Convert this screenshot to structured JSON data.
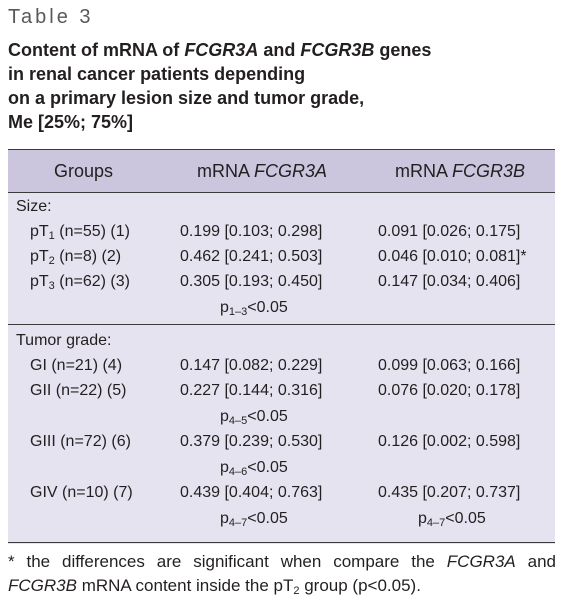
{
  "table_label": "Table 3",
  "caption": {
    "line1_a": "Content of mRNA of ",
    "line1_gene_a": "FCGR3A",
    "line1_b": " and ",
    "line1_gene_b": "FCGR3B",
    "line1_c": " genes",
    "line2": "in renal cancer patients depending",
    "line3": "on a primary lesion size and tumor grade,",
    "line4": "Me [25%; 75%]"
  },
  "headers": {
    "groups": "Groups",
    "col2_prefix": "mRNA ",
    "col2_gene": "FCGR3A",
    "col3_prefix": "mRNA ",
    "col3_gene": "FCGR3B"
  },
  "sections": {
    "size": "Size:",
    "grade": "Tumor grade:"
  },
  "rows": [
    {
      "pre": "pT",
      "sub": "1",
      "post": " (n=55) (1)",
      "a": "0.199 [0.103; 0.298]",
      "b": "0.091 [0.026; 0.175]"
    },
    {
      "pre": "pT",
      "sub": "2",
      "post": " (n=8) (2)",
      "a": "0.462 [0.241; 0.503]",
      "b": "0.046 [0.010; 0.081]*"
    },
    {
      "pre": "pT",
      "sub": "3",
      "post": " (n=62) (3)",
      "a": "0.305 [0.193; 0.450]",
      "b": "0.147 [0.034; 0.406]"
    },
    {
      "label": "GI (n=21) (4)",
      "a": "0.147 [0.082; 0.229]",
      "b": "0.099 [0.063; 0.166]"
    },
    {
      "label": "GII (n=22) (5)",
      "a": "0.227 [0.144; 0.316]",
      "b": "0.076 [0.020; 0.178]"
    },
    {
      "label": "GIII (n=72) (6)",
      "a": "0.379 [0.239; 0.530]",
      "b": "0.126 [0.002; 0.598]"
    },
    {
      "label": "GIV (n=10) (7)",
      "a": "0.439 [0.404; 0.763]",
      "b": "0.435 [0.207; 0.737]"
    }
  ],
  "pvalues": {
    "p13": {
      "pre": "p",
      "sub": "1–3",
      "post": "<0.05"
    },
    "p45": {
      "pre": "p",
      "sub": "4–5",
      "post": "<0.05"
    },
    "p46": {
      "pre": "p",
      "sub": "4–6",
      "post": "<0.05"
    },
    "p47a": {
      "pre": "p",
      "sub": "4–7",
      "post": "<0.05"
    },
    "p47b": {
      "pre": "p",
      "sub": "4–7",
      "post": "<0.05"
    }
  },
  "footnote": {
    "part1": "* the differences are significant when compare the ",
    "gene_a": "FCGR3A",
    "part2": " and ",
    "gene_b": "FCGR3B",
    "part3": " mRNA content inside the pT",
    "sub": "2",
    "part4": " group (p<0.05)."
  }
}
